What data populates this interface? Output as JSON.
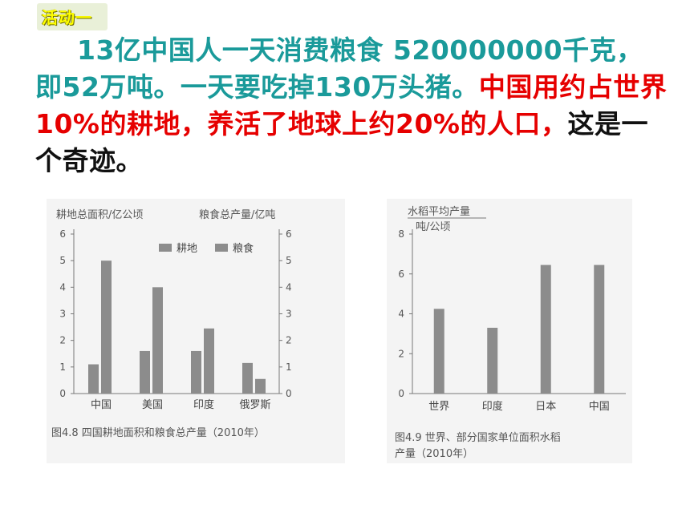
{
  "badge": "活动一",
  "paragraph": {
    "part1": "13亿中国人一天消费粮食 520000000千克，即52万吨。一天要吃掉130万头猪。",
    "part2": "中国用约占世界10%的耕地，养活了地球上约20%的人口，",
    "part3": "这是一个奇迹。"
  },
  "colors": {
    "teal": "#1a9a9a",
    "red": "#e60000",
    "bar": "#8c8c8c",
    "axis": "#777777"
  },
  "chart_data": [
    {
      "type": "bar",
      "categories": [
        "中国",
        "美国",
        "印度",
        "俄罗斯"
      ],
      "series": [
        {
          "name": "耕地",
          "values": [
            1.1,
            1.6,
            1.6,
            1.15
          ]
        },
        {
          "name": "粮食",
          "values": [
            5.0,
            4.0,
            2.45,
            0.55
          ]
        }
      ],
      "ylabel_left": "耕地总面积/亿公顷",
      "ylabel_right": "粮食总产量/亿吨",
      "ylim": [
        0,
        6
      ],
      "yticks": [
        0,
        1,
        2,
        3,
        4,
        5,
        6
      ],
      "legend": "top-right",
      "caption": "图4.8  四国耕地面积和粮食总产量（2010年）"
    },
    {
      "type": "bar",
      "categories": [
        "世界",
        "印度",
        "日本",
        "中国"
      ],
      "values": [
        4.25,
        3.3,
        6.45,
        6.45
      ],
      "ylabel_line1": "水稻平均产量",
      "ylabel_line2": "吨/公顷",
      "ylim": [
        0,
        8
      ],
      "yticks": [
        0,
        2,
        4,
        6,
        8
      ],
      "caption_line1": "图4.9  世界、部分国家单位面积水稻",
      "caption_line2": "产量（2010年）"
    }
  ]
}
